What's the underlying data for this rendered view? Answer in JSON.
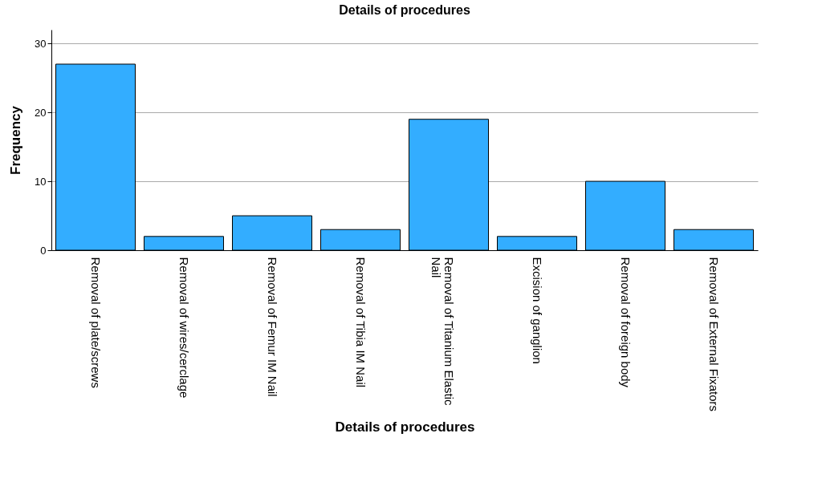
{
  "chart_data": {
    "type": "bar",
    "title": "Details of procedures",
    "xlabel": "Details of procedures",
    "ylabel": "Frequency",
    "categories": [
      "Removal of plate/screws",
      "Removal of wires/cerclage",
      "Removal of Femur IM Nail",
      "Removal of Tibia IM Nail",
      "Removal of Titanium Elastic Nail",
      "Excision of ganglion",
      "Removal of foreign body",
      "Removal of External Fixators"
    ],
    "values": [
      27,
      2,
      5,
      3,
      19,
      2,
      10,
      3
    ],
    "color": "#33adff",
    "ylim": [
      0,
      32
    ],
    "yticks": [
      0,
      10,
      20,
      30
    ],
    "grid": "y"
  }
}
